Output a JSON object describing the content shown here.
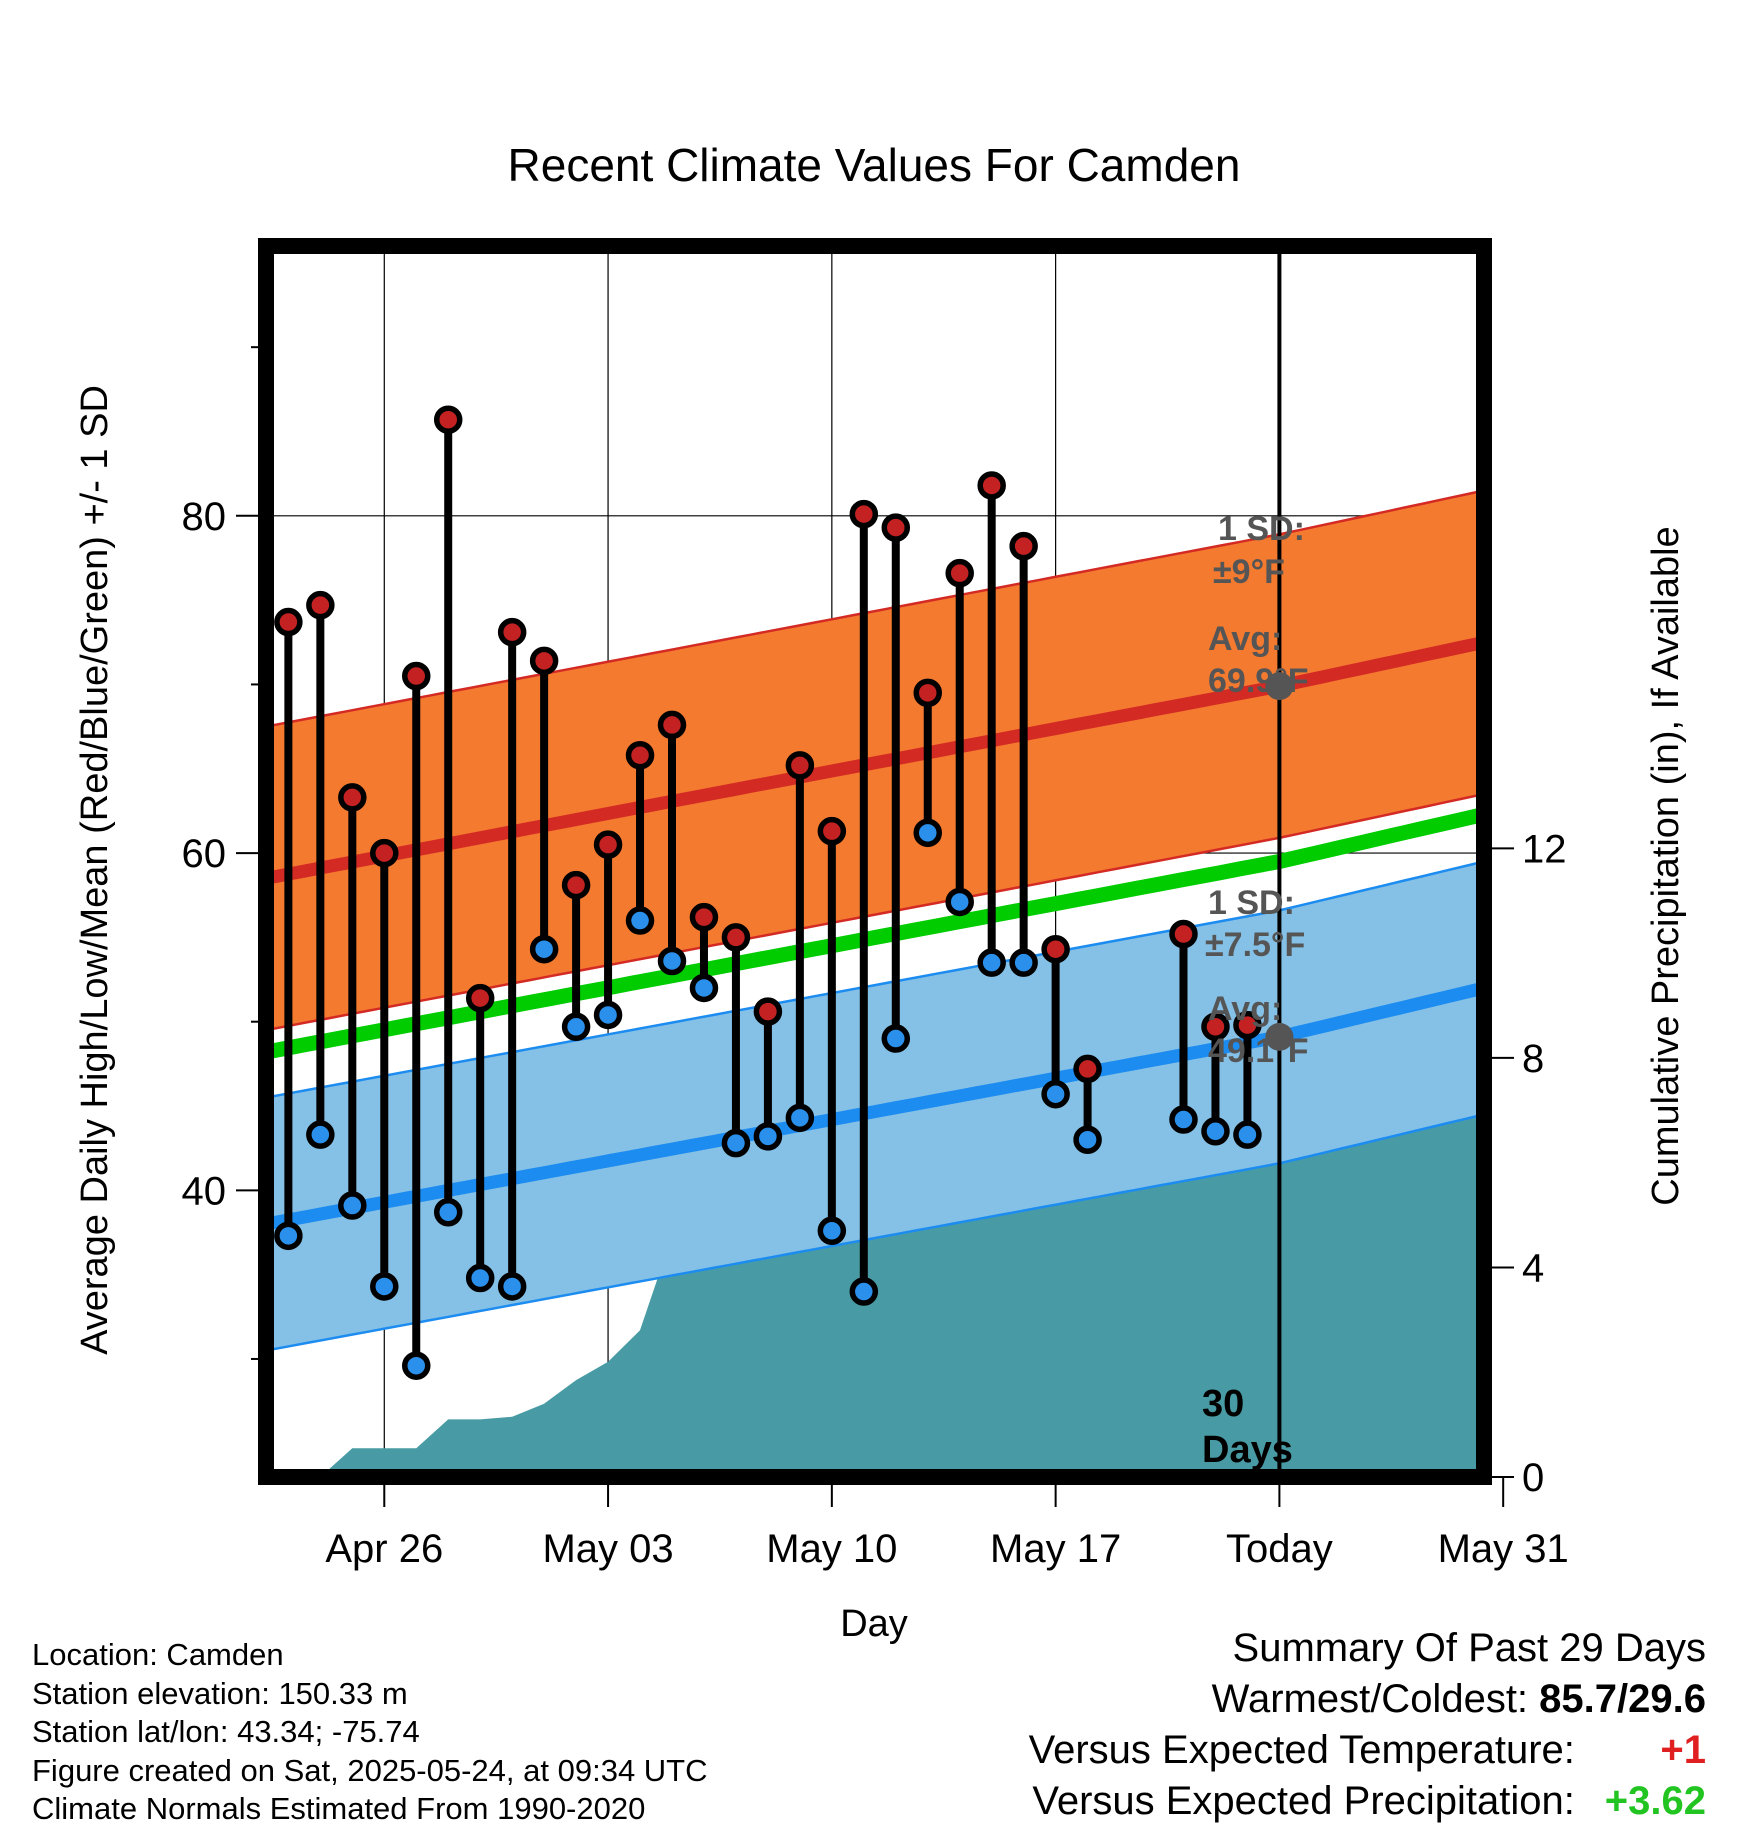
{
  "chart_data": {
    "type": "line",
    "title": "Recent Climate Values For Camden",
    "xlabel": "Day",
    "ylabel": "Average Daily High/Low/Mean (Red/Blue/Green) +/- 1 SD",
    "y2label": "Cumulative Precipitation (in), If Available",
    "ylim": [
      23,
      96
    ],
    "y2lim": [
      0,
      23.5
    ],
    "yticks": [
      {
        "v": 40,
        "label": "40"
      },
      {
        "v": 60,
        "label": "60"
      },
      {
        "v": 80,
        "label": "80"
      }
    ],
    "yminor": [
      30,
      50,
      70,
      90
    ],
    "y2ticks": [
      {
        "v": 0,
        "label": "0"
      },
      {
        "v": 4,
        "label": "4"
      },
      {
        "v": 8,
        "label": "8"
      },
      {
        "v": 12,
        "label": "12"
      }
    ],
    "xlim": [
      22.3,
      60.4
    ],
    "xticks": [
      {
        "d": 26,
        "label": "Apr 26"
      },
      {
        "d": 33,
        "label": "May 03"
      },
      {
        "d": 40,
        "label": "May 10"
      },
      {
        "d": 47,
        "label": "May 17"
      },
      {
        "d": 54,
        "label": "Today"
      },
      {
        "d": 61,
        "label": "May 31"
      }
    ],
    "today_day": 54,
    "normal_high": {
      "x": [
        22.3,
        54,
        60.4
      ],
      "mean": [
        58.5,
        69.9,
        72.5
      ],
      "sd": 9
    },
    "normal_low": {
      "x": [
        22.3,
        54,
        60.4
      ],
      "mean": [
        38.0,
        49.1,
        52.0
      ],
      "sd": 7.5
    },
    "normal_mean": {
      "x": [
        22.3,
        54,
        60.4
      ],
      "values": [
        48.2,
        59.5,
        62.3
      ]
    },
    "days": [
      23,
      24,
      25,
      26,
      27,
      28,
      29,
      30,
      31,
      32,
      33,
      34,
      35,
      36,
      37,
      38,
      39,
      40,
      41,
      42,
      43,
      44,
      45,
      46,
      47,
      48,
      49,
      51,
      52,
      53
    ],
    "highs": [
      73.7,
      74.7,
      63.3,
      60.0,
      70.5,
      85.7,
      51.4,
      73.1,
      71.4,
      58.1,
      60.5,
      65.8,
      67.6,
      56.2,
      55.0,
      50.6,
      65.2,
      61.3,
      80.1,
      79.3,
      69.5,
      76.6,
      81.8,
      78.2,
      54.3,
      47.2,
      null,
      55.2,
      49.7,
      49.8
    ],
    "lows": [
      37.3,
      43.3,
      39.1,
      34.3,
      29.6,
      38.7,
      34.8,
      34.3,
      54.3,
      49.7,
      50.4,
      56.0,
      53.6,
      52.0,
      42.8,
      43.2,
      44.3,
      37.6,
      34.0,
      49.0,
      61.2,
      57.1,
      53.5,
      53.5,
      45.7,
      43.0,
      null,
      44.2,
      43.5,
      43.3
    ],
    "precip": {
      "x": [
        24,
        25,
        27,
        28,
        29,
        30,
        31,
        32,
        33,
        34,
        35,
        36,
        37,
        38,
        39,
        40,
        41,
        42,
        43,
        44,
        45,
        46,
        47,
        48,
        49,
        50,
        51,
        52,
        53,
        54,
        60.4
      ],
      "values": [
        0,
        0.55,
        0.55,
        1.1,
        1.1,
        1.15,
        1.4,
        1.85,
        2.2,
        2.8,
        4.6,
        5.15,
        5.15,
        5.55,
        5.55,
        5.55,
        5.55,
        5.55,
        5.55,
        5.55,
        5.55,
        5.55,
        6.2,
        6.9,
        6.9,
        6.9,
        7.0,
        7.4,
        8.1,
        8.1,
        8.1
      ]
    },
    "annotations": {
      "high_sd_label": "1 SD:",
      "high_sd_value": "±9°F",
      "high_avg_label": "Avg:",
      "high_avg_value": "69.9°F",
      "low_sd_label": "1 SD:",
      "low_sd_value": "±7.5°F",
      "low_avg_label": "Avg:",
      "low_avg_value": "49.1°F",
      "days_num": "30",
      "days_word": "Days"
    },
    "colors": {
      "high_band": "#F47A30",
      "high_line": "#D42A24",
      "low_band": "#85C1E6",
      "low_line": "#1C8CF0",
      "mean_line": "#00CC00",
      "precip": "#489BA4",
      "high_dot": "#C42222",
      "low_dot": "#2A90EC",
      "avg_marker": "#555555"
    }
  },
  "footer": {
    "location": "Location: Camden",
    "elevation": "Station elevation: 150.33 m",
    "latlon": "Station lat/lon: 43.34; -75.74",
    "created": "Figure created on Sat, 2025-05-24, at 09:34 UTC",
    "normals": "Climate Normals Estimated From 1990-2020"
  },
  "summary": {
    "heading": "Summary Of Past 29 Days",
    "warm_cold_label": "Warmest/Coldest:",
    "warm_cold_value": "85.7/29.6",
    "temp_label": "Versus Expected Temperature:",
    "temp_value": "+1",
    "temp_color": "#E02020",
    "precip_label": "Versus Expected Precipitation:",
    "precip_value": "+3.62",
    "precip_color": "#22C422"
  }
}
